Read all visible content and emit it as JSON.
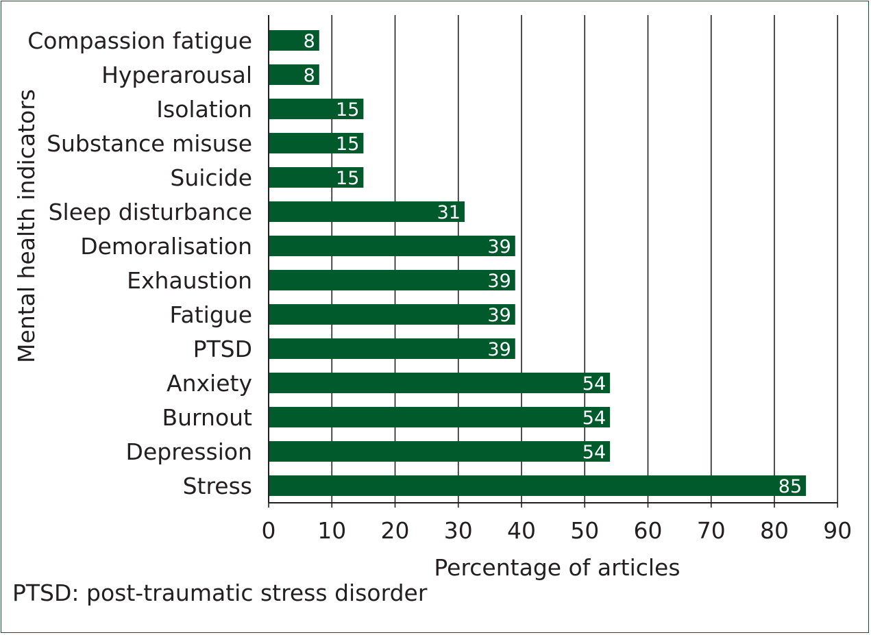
{
  "chart_data": {
    "type": "bar",
    "orientation": "horizontal",
    "categories": [
      "Compassion fatigue",
      "Hyperarousal",
      "Isolation",
      "Substance misuse",
      "Suicide",
      "Sleep disturbance",
      "Demoralisation",
      "Exhaustion",
      "Fatigue",
      "PTSD",
      "Anxiety",
      "Burnout",
      "Depression",
      "Stress"
    ],
    "values": [
      8,
      8,
      15,
      15,
      15,
      31,
      39,
      39,
      39,
      39,
      54,
      54,
      54,
      85
    ],
    "data_labels": [
      "8",
      "8",
      "15",
      "15",
      "15",
      "31",
      "39",
      "39",
      "39",
      "39",
      "54",
      "54",
      "54",
      "85"
    ],
    "xlabel": "Percentage of articles",
    "ylabel": "Mental health indicators",
    "xlim": [
      0,
      90
    ],
    "xticks": [
      0,
      10,
      20,
      30,
      40,
      50,
      60,
      70,
      80,
      90
    ],
    "vertical_gridlines": true,
    "bar_color": "#005a2b",
    "footnote": "PTSD: post-traumatic stress disorder"
  }
}
